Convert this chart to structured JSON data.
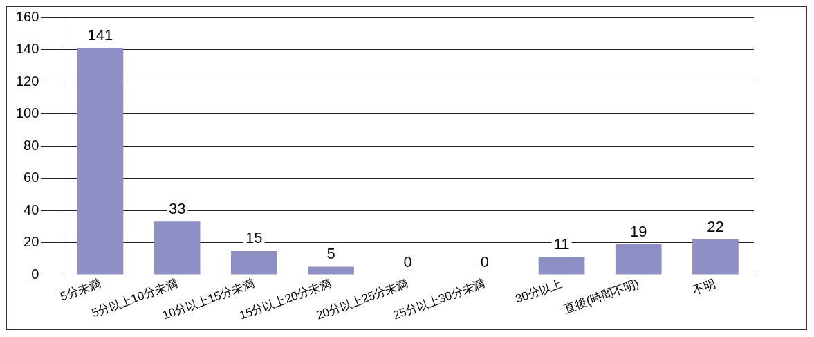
{
  "chart_data": {
    "type": "bar",
    "categories": [
      "5分未満",
      "5分以上10分未満",
      "10分以上15分未満",
      "15分以上20分未満",
      "20分以上25分未満",
      "25分以上30分未満",
      "30分以上",
      "直後(時間不明)",
      "不明"
    ],
    "values": [
      141,
      33,
      15,
      5,
      0,
      0,
      11,
      19,
      22
    ],
    "color": "#8e8fc4",
    "ylim": [
      0,
      160
    ],
    "yticks": [
      0,
      20,
      40,
      60,
      80,
      100,
      120,
      140,
      160
    ],
    "grid": "y",
    "legend": false,
    "data_labels": true
  }
}
